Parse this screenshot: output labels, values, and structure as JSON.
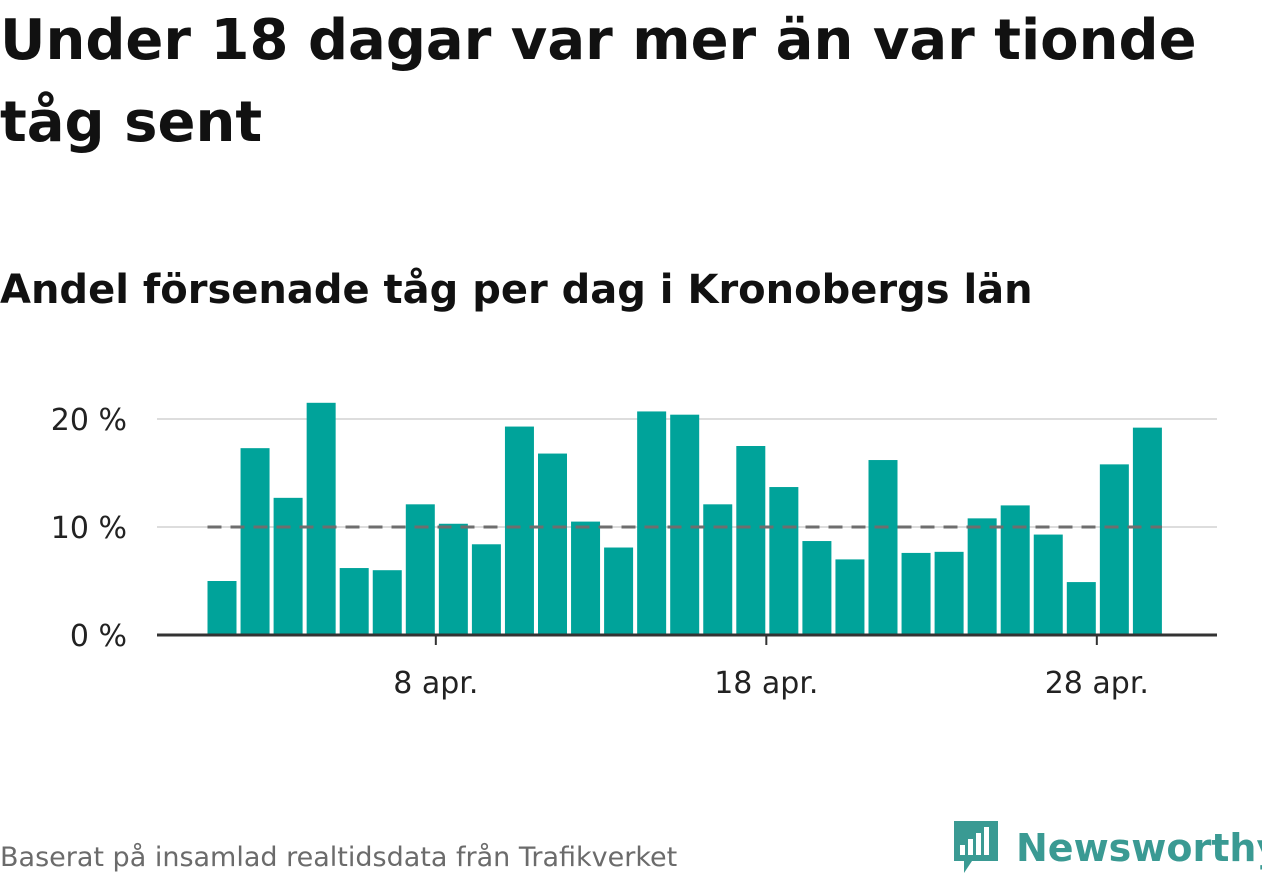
{
  "headline": "Under 18 dagar var mer än var tionde tåg sent",
  "subtitle": "Andel försenade tåg per dag i Kronobergs län",
  "footer": {
    "source": "Baserat på insamlad realtidsdata från Trafikverket",
    "brand": "Newsworthy"
  },
  "colors": {
    "bar": "#00a39a",
    "reference_line": "#6e6e6e",
    "grid": "#dddddd",
    "axis": "#333333",
    "brand": "#3a9a93"
  },
  "chart_data": {
    "type": "bar",
    "x": [
      "2024-04-01",
      "2024-04-02",
      "2024-04-03",
      "2024-04-04",
      "2024-04-05",
      "2024-04-06",
      "2024-04-07",
      "2024-04-08",
      "2024-04-09",
      "2024-04-10",
      "2024-04-11",
      "2024-04-12",
      "2024-04-13",
      "2024-04-14",
      "2024-04-15",
      "2024-04-16",
      "2024-04-17",
      "2024-04-18",
      "2024-04-19",
      "2024-04-20",
      "2024-04-21",
      "2024-04-22",
      "2024-04-23",
      "2024-04-24",
      "2024-04-25",
      "2024-04-26",
      "2024-04-27",
      "2024-04-28",
      "2024-04-29"
    ],
    "values": [
      5.0,
      17.3,
      12.7,
      21.5,
      6.2,
      6.0,
      12.1,
      10.3,
      8.4,
      19.3,
      16.8,
      10.5,
      8.1,
      20.7,
      20.4,
      12.1,
      17.5,
      13.7,
      8.7,
      7.0,
      16.2,
      7.6,
      7.7,
      10.8,
      12.0,
      9.3,
      4.9,
      15.8,
      19.2
    ],
    "ylim": [
      0,
      21.5
    ],
    "yticks": [
      0,
      10,
      20
    ],
    "ytick_labels": [
      "0 %",
      "10 %",
      "20 %"
    ],
    "xtick_labels": [
      {
        "date": "2024-04-08",
        "label": "8 apr."
      },
      {
        "date": "2024-04-18",
        "label": "18 apr."
      },
      {
        "date": "2024-04-28",
        "label": "28 apr."
      }
    ],
    "reference_line": 10,
    "grid": true,
    "xlabel": "",
    "ylabel": ""
  }
}
